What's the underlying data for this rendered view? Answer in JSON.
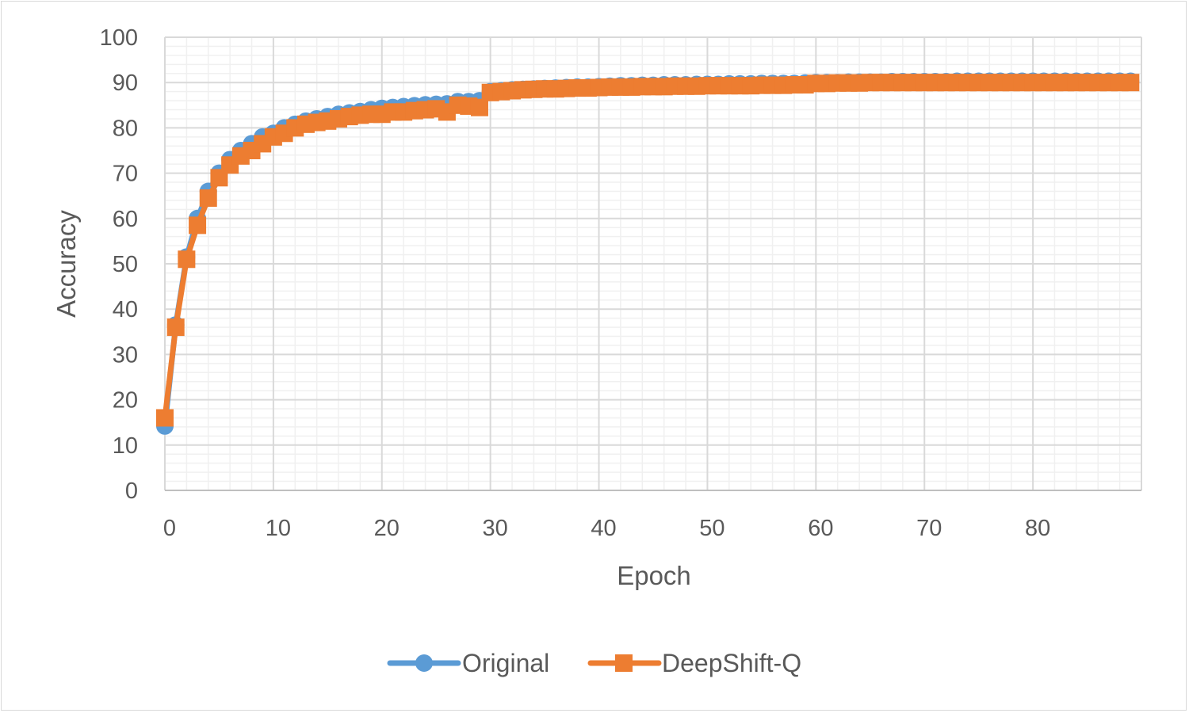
{
  "colors": {
    "original": "#5b9bd5",
    "deepshift": "#ed7d31",
    "grid_major": "#d9d9d9",
    "grid_minor": "#f0f0f0",
    "text": "#595959"
  },
  "chart_data": {
    "type": "line",
    "title": "",
    "xlabel": "Epoch",
    "ylabel": "Accuracy",
    "xlim": [
      0,
      90
    ],
    "ylim": [
      0,
      100
    ],
    "x_ticks": [
      "0",
      "10",
      "20",
      "30",
      "40",
      "50",
      "60",
      "70",
      "80"
    ],
    "y_ticks": [
      "0",
      "10",
      "20",
      "30",
      "40",
      "50",
      "60",
      "70",
      "80",
      "90",
      "100"
    ],
    "grid": "major and minor",
    "legend_position": "bottom",
    "series": [
      {
        "name": "Original",
        "marker": "circle",
        "x": [
          0,
          1,
          2,
          3,
          4,
          5,
          6,
          7,
          8,
          9,
          10,
          11,
          12,
          13,
          14,
          15,
          16,
          17,
          18,
          19,
          20,
          21,
          22,
          23,
          24,
          25,
          26,
          27,
          28,
          29,
          30,
          31,
          32,
          33,
          34,
          35,
          36,
          37,
          38,
          39,
          40,
          41,
          42,
          43,
          44,
          45,
          46,
          47,
          48,
          49,
          50,
          51,
          52,
          53,
          54,
          55,
          56,
          57,
          58,
          59,
          60,
          61,
          62,
          63,
          64,
          65,
          66,
          67,
          68,
          69,
          70,
          71,
          72,
          73,
          74,
          75,
          76,
          77,
          78,
          79,
          80,
          81,
          82,
          83,
          84,
          85,
          86,
          87,
          88,
          89
        ],
        "y": [
          14.2,
          36.5,
          51.5,
          60.0,
          66.0,
          70.0,
          73.0,
          75.0,
          76.5,
          78.0,
          78.8,
          80.0,
          80.8,
          81.5,
          82.0,
          82.5,
          83.0,
          83.3,
          83.6,
          84.0,
          84.3,
          84.5,
          84.7,
          84.9,
          85.1,
          85.2,
          85.3,
          85.8,
          85.8,
          86.0,
          88.0,
          88.2,
          88.4,
          88.5,
          88.6,
          88.7,
          88.8,
          88.9,
          89.0,
          89.0,
          89.1,
          89.2,
          89.3,
          89.3,
          89.4,
          89.4,
          89.5,
          89.5,
          89.5,
          89.6,
          89.6,
          89.6,
          89.7,
          89.7,
          89.7,
          89.8,
          89.8,
          89.8,
          89.8,
          89.9,
          90.0,
          90.0,
          90.0,
          90.1,
          90.1,
          90.1,
          90.1,
          90.2,
          90.2,
          90.2,
          90.2,
          90.2,
          90.2,
          90.3,
          90.3,
          90.3,
          90.3,
          90.3,
          90.3,
          90.3,
          90.3,
          90.3,
          90.3,
          90.3,
          90.3,
          90.3,
          90.3,
          90.3,
          90.3,
          90.3
        ]
      },
      {
        "name": "DeepShift-Q",
        "marker": "square",
        "x": [
          0,
          1,
          2,
          3,
          4,
          5,
          6,
          7,
          8,
          9,
          10,
          11,
          12,
          13,
          14,
          15,
          16,
          17,
          18,
          19,
          20,
          21,
          22,
          23,
          24,
          25,
          26,
          27,
          28,
          29,
          30,
          31,
          32,
          33,
          34,
          35,
          36,
          37,
          38,
          39,
          40,
          41,
          42,
          43,
          44,
          45,
          46,
          47,
          48,
          49,
          50,
          51,
          52,
          53,
          54,
          55,
          56,
          57,
          58,
          59,
          60,
          61,
          62,
          63,
          64,
          65,
          66,
          67,
          68,
          69,
          70,
          71,
          72,
          73,
          74,
          75,
          76,
          77,
          78,
          79,
          80,
          81,
          82,
          83,
          84,
          85,
          86,
          87,
          88,
          89
        ],
        "y": [
          16.0,
          36.0,
          51.0,
          58.5,
          64.5,
          69.0,
          71.8,
          73.8,
          75.0,
          76.5,
          78.0,
          78.8,
          80.0,
          80.8,
          81.2,
          81.5,
          82.0,
          82.5,
          82.8,
          83.0,
          83.0,
          83.5,
          83.5,
          83.8,
          84.0,
          84.2,
          83.5,
          85.0,
          84.8,
          84.5,
          87.8,
          88.0,
          88.2,
          88.4,
          88.5,
          88.6,
          88.6,
          88.7,
          88.8,
          88.8,
          88.9,
          89.0,
          89.0,
          89.0,
          89.1,
          89.1,
          89.1,
          89.2,
          89.2,
          89.2,
          89.3,
          89.3,
          89.3,
          89.3,
          89.3,
          89.4,
          89.4,
          89.4,
          89.5,
          89.5,
          89.8,
          89.8,
          89.9,
          89.9,
          89.9,
          90.0,
          90.0,
          90.0,
          90.0,
          90.0,
          90.0,
          90.0,
          90.0,
          90.0,
          90.0,
          90.0,
          90.0,
          90.0,
          90.0,
          90.0,
          90.0,
          90.0,
          90.0,
          90.0,
          90.0,
          90.0,
          90.0,
          90.0,
          90.0,
          90.0
        ]
      }
    ]
  }
}
